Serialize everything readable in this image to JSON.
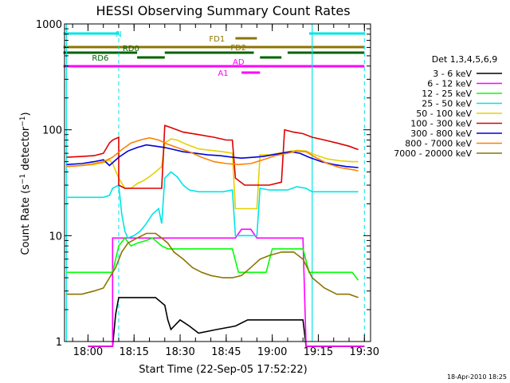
{
  "chart_data": {
    "type": "line",
    "title": "HESSI Observing Summary Count Rates",
    "xlabel": "Start Time (22-Sep-05 17:52:22)",
    "ylabel": "Count Rate (s⁻¹ detector⁻¹)",
    "ylabel_parts": {
      "main": "Count Rate (s",
      "sup1": "−1",
      "mid": " detector",
      "sup2": "−1",
      "end": ")"
    },
    "y_scale": "log",
    "ylim": [
      1,
      1000
    ],
    "yticks": [
      {
        "value": 1,
        "label": "1"
      },
      {
        "value": 10,
        "label": "10"
      },
      {
        "value": 100,
        "label": "100"
      },
      {
        "value": 1000,
        "label": "1000"
      }
    ],
    "xlim": [
      "17:52:22",
      "19:32:00"
    ],
    "xticks": [
      "18:00",
      "18:15",
      "18:30",
      "18:45",
      "19:00",
      "19:15",
      "19:30"
    ],
    "grid": false,
    "legend_title": "Det 1,3,4,5,6,9",
    "legend_position": "right",
    "timestamp": "18-Apr-2010 18:25",
    "flags": [
      {
        "name": "N",
        "color": "#00e5e5",
        "segments": [
          [
            "17:52",
            "18:10"
          ],
          [
            "19:12",
            "19:30"
          ]
        ]
      },
      {
        "name": "FD1",
        "color": "#8b7500",
        "segments": [
          [
            "18:48",
            "18:55"
          ]
        ]
      },
      {
        "name": "FD2",
        "color": "#8b7500",
        "segments": [
          [
            "17:52",
            "19:30"
          ]
        ]
      },
      {
        "name": "RD0",
        "color": "#006400",
        "segments": [
          [
            "17:52",
            "18:16"
          ],
          [
            "18:25",
            "18:54"
          ],
          [
            "19:05",
            "19:30"
          ]
        ]
      },
      {
        "name": "RD6",
        "color": "#006400",
        "segments": [
          [
            "18:16",
            "18:25"
          ],
          [
            "18:56",
            "19:03"
          ]
        ]
      },
      {
        "name": "AD",
        "color": "#ff00ff",
        "segments": [
          [
            "17:52",
            "19:30"
          ]
        ]
      },
      {
        "name": "A1",
        "color": "#ff00ff",
        "segments": [
          [
            "18:50",
            "18:56"
          ]
        ]
      }
    ],
    "saa_markers": [
      "17:53",
      "19:13"
    ],
    "night_markers": [
      "18:10",
      "19:30"
    ],
    "series": [
      {
        "name": "3 - 6 keV",
        "color": "#000000",
        "points": [
          [
            "18:00",
            0.9
          ],
          [
            "18:08",
            0.9
          ],
          [
            "18:09",
            1.8
          ],
          [
            "18:10",
            2.6
          ],
          [
            "18:12",
            2.6
          ],
          [
            "18:14",
            2.6
          ],
          [
            "18:16",
            2.6
          ],
          [
            "18:18",
            2.6
          ],
          [
            "18:20",
            2.6
          ],
          [
            "18:22",
            2.6
          ],
          [
            "18:25",
            2.2
          ],
          [
            "18:26",
            1.6
          ],
          [
            "18:27",
            1.3
          ],
          [
            "18:30",
            1.6
          ],
          [
            "18:33",
            1.4
          ],
          [
            "18:36",
            1.2
          ],
          [
            "18:42",
            1.3
          ],
          [
            "18:48",
            1.4
          ],
          [
            "18:52",
            1.6
          ],
          [
            "18:56",
            1.6
          ],
          [
            "19:00",
            1.6
          ],
          [
            "19:05",
            1.6
          ],
          [
            "19:10",
            1.6
          ],
          [
            "19:11",
            0.9
          ],
          [
            "19:30",
            0.9
          ]
        ]
      },
      {
        "name": "6 - 12 keV",
        "color": "#ff00ff",
        "points": [
          [
            "18:00",
            0.9
          ],
          [
            "18:08",
            0.9
          ],
          [
            "18:08",
            9.5
          ],
          [
            "18:12",
            9.5
          ],
          [
            "18:18",
            9.5
          ],
          [
            "18:24",
            9.5
          ],
          [
            "18:30",
            9.5
          ],
          [
            "18:40",
            9.5
          ],
          [
            "18:48",
            9.5
          ],
          [
            "18:50",
            11.5
          ],
          [
            "18:53",
            11.5
          ],
          [
            "18:55",
            9.5
          ],
          [
            "19:00",
            9.5
          ],
          [
            "19:05",
            9.5
          ],
          [
            "19:10",
            9.5
          ],
          [
            "19:11",
            0.9
          ],
          [
            "19:30",
            0.9
          ]
        ]
      },
      {
        "name": "12 - 25 keV",
        "color": "#00ff00",
        "points": [
          [
            "17:53",
            4.5
          ],
          [
            "17:58",
            4.5
          ],
          [
            "18:02",
            4.5
          ],
          [
            "18:05",
            4.5
          ],
          [
            "18:08",
            4.5
          ],
          [
            "18:10",
            8.0
          ],
          [
            "18:12",
            9.5
          ],
          [
            "18:14",
            8.0
          ],
          [
            "18:16",
            8.5
          ],
          [
            "18:19",
            9.0
          ],
          [
            "18:21",
            9.5
          ],
          [
            "18:24",
            8.0
          ],
          [
            "18:26",
            7.5
          ],
          [
            "18:28",
            7.5
          ],
          [
            "18:33",
            7.5
          ],
          [
            "18:38",
            7.5
          ],
          [
            "18:43",
            7.5
          ],
          [
            "18:47",
            7.5
          ],
          [
            "18:49",
            4.5
          ],
          [
            "18:52",
            4.5
          ],
          [
            "18:55",
            4.5
          ],
          [
            "18:58",
            4.5
          ],
          [
            "19:00",
            7.5
          ],
          [
            "19:05",
            7.5
          ],
          [
            "19:10",
            7.5
          ],
          [
            "19:12",
            4.5
          ],
          [
            "19:16",
            4.5
          ],
          [
            "19:22",
            4.5
          ],
          [
            "19:26",
            4.5
          ],
          [
            "19:28",
            3.8
          ]
        ]
      },
      {
        "name": "25 - 50 keV",
        "color": "#00e5e5",
        "points": [
          [
            "17:53",
            23
          ],
          [
            "17:58",
            23
          ],
          [
            "18:02",
            23
          ],
          [
            "18:05",
            23
          ],
          [
            "18:07",
            24
          ],
          [
            "18:08",
            28
          ],
          [
            "18:10",
            30
          ],
          [
            "18:11",
            16
          ],
          [
            "18:12",
            11
          ],
          [
            "18:13",
            9.5
          ],
          [
            "18:15",
            10
          ],
          [
            "18:17",
            11
          ],
          [
            "18:19",
            13
          ],
          [
            "18:21",
            16
          ],
          [
            "18:23",
            18
          ],
          [
            "18:24",
            13
          ],
          [
            "18:25",
            35
          ],
          [
            "18:27",
            40
          ],
          [
            "18:29",
            36
          ],
          [
            "18:31",
            30
          ],
          [
            "18:33",
            27
          ],
          [
            "18:36",
            26
          ],
          [
            "18:40",
            26
          ],
          [
            "18:44",
            26
          ],
          [
            "18:47",
            27
          ],
          [
            "18:48",
            10
          ],
          [
            "18:52",
            10
          ],
          [
            "18:55",
            10
          ],
          [
            "18:56",
            28
          ],
          [
            "18:59",
            27
          ],
          [
            "19:02",
            27
          ],
          [
            "19:05",
            27
          ],
          [
            "19:08",
            29
          ],
          [
            "19:11",
            28
          ],
          [
            "19:13",
            26
          ],
          [
            "19:17",
            26
          ],
          [
            "19:21",
            26
          ],
          [
            "19:25",
            26
          ],
          [
            "19:28",
            26
          ]
        ]
      },
      {
        "name": "50 - 100 keV",
        "color": "#e5d000",
        "points": [
          [
            "17:53",
            45
          ],
          [
            "17:58",
            46
          ],
          [
            "18:02",
            47
          ],
          [
            "18:05",
            49
          ],
          [
            "18:07",
            52
          ],
          [
            "18:08",
            48
          ],
          [
            "18:10",
            35
          ],
          [
            "18:12",
            28
          ],
          [
            "18:14",
            28
          ],
          [
            "18:16",
            31
          ],
          [
            "18:18",
            33
          ],
          [
            "18:20",
            36
          ],
          [
            "18:22",
            40
          ],
          [
            "18:24",
            45
          ],
          [
            "18:25",
            75
          ],
          [
            "18:27",
            82
          ],
          [
            "18:29",
            80
          ],
          [
            "18:32",
            73
          ],
          [
            "18:36",
            66
          ],
          [
            "18:40",
            64
          ],
          [
            "18:44",
            62
          ],
          [
            "18:47",
            60
          ],
          [
            "18:48",
            18
          ],
          [
            "18:52",
            18
          ],
          [
            "18:55",
            18
          ],
          [
            "18:56",
            58
          ],
          [
            "18:59",
            58
          ],
          [
            "19:02",
            60
          ],
          [
            "19:05",
            62
          ],
          [
            "19:08",
            64
          ],
          [
            "19:11",
            63
          ],
          [
            "19:14",
            58
          ],
          [
            "19:18",
            53
          ],
          [
            "19:22",
            51
          ],
          [
            "19:26",
            50
          ],
          [
            "19:28",
            50
          ]
        ]
      },
      {
        "name": "100 - 300 keV",
        "color": "#dd0000",
        "points": [
          [
            "17:53",
            55
          ],
          [
            "17:58",
            56
          ],
          [
            "18:02",
            57
          ],
          [
            "18:05",
            60
          ],
          [
            "18:07",
            75
          ],
          [
            "18:08",
            80
          ],
          [
            "18:10",
            85
          ],
          [
            "18:10",
            30
          ],
          [
            "18:12",
            28
          ],
          [
            "18:16",
            28
          ],
          [
            "18:20",
            28
          ],
          [
            "18:24",
            28
          ],
          [
            "18:25",
            110
          ],
          [
            "18:27",
            105
          ],
          [
            "18:31",
            95
          ],
          [
            "18:36",
            90
          ],
          [
            "18:41",
            85
          ],
          [
            "18:45",
            80
          ],
          [
            "18:47",
            80
          ],
          [
            "18:48",
            35
          ],
          [
            "18:51",
            30
          ],
          [
            "18:55",
            30
          ],
          [
            "18:59",
            30
          ],
          [
            "19:03",
            32
          ],
          [
            "19:04",
            100
          ],
          [
            "19:07",
            95
          ],
          [
            "19:10",
            92
          ],
          [
            "19:13",
            85
          ],
          [
            "19:17",
            80
          ],
          [
            "19:21",
            75
          ],
          [
            "19:25",
            70
          ],
          [
            "19:28",
            65
          ]
        ]
      },
      {
        "name": "300 - 800 keV",
        "color": "#0000dd",
        "points": [
          [
            "17:53",
            47
          ],
          [
            "17:58",
            48
          ],
          [
            "18:02",
            50
          ],
          [
            "18:05",
            52
          ],
          [
            "18:07",
            46
          ],
          [
            "18:10",
            55
          ],
          [
            "18:13",
            63
          ],
          [
            "18:16",
            68
          ],
          [
            "18:19",
            72
          ],
          [
            "18:22",
            70
          ],
          [
            "18:25",
            68
          ],
          [
            "18:28",
            65
          ],
          [
            "18:31",
            62
          ],
          [
            "18:35",
            60
          ],
          [
            "18:39",
            58
          ],
          [
            "18:43",
            57
          ],
          [
            "18:47",
            55
          ],
          [
            "18:50",
            54
          ],
          [
            "18:54",
            55
          ],
          [
            "18:57",
            56
          ],
          [
            "19:00",
            58
          ],
          [
            "19:03",
            60
          ],
          [
            "19:06",
            62
          ],
          [
            "19:09",
            60
          ],
          [
            "19:12",
            55
          ],
          [
            "19:16",
            50
          ],
          [
            "19:20",
            47
          ],
          [
            "19:24",
            45
          ],
          [
            "19:28",
            44
          ]
        ]
      },
      {
        "name": "800 - 7000 keV",
        "color": "#ff8000",
        "points": [
          [
            "17:53",
            45
          ],
          [
            "17:58",
            46
          ],
          [
            "18:02",
            48
          ],
          [
            "18:05",
            50
          ],
          [
            "18:08",
            55
          ],
          [
            "18:11",
            65
          ],
          [
            "18:14",
            75
          ],
          [
            "18:17",
            80
          ],
          [
            "18:20",
            84
          ],
          [
            "18:23",
            80
          ],
          [
            "18:26",
            73
          ],
          [
            "18:29",
            68
          ],
          [
            "18:33",
            62
          ],
          [
            "18:37",
            55
          ],
          [
            "18:41",
            50
          ],
          [
            "18:45",
            48
          ],
          [
            "18:49",
            47
          ],
          [
            "18:53",
            48
          ],
          [
            "18:57",
            52
          ],
          [
            "19:01",
            57
          ],
          [
            "19:05",
            60
          ],
          [
            "19:08",
            63
          ],
          [
            "19:11",
            62
          ],
          [
            "19:14",
            55
          ],
          [
            "19:18",
            48
          ],
          [
            "19:22",
            44
          ],
          [
            "19:26",
            42
          ],
          [
            "19:28",
            41
          ]
        ]
      },
      {
        "name": "7000 - 20000 keV",
        "color": "#8b7500",
        "points": [
          [
            "17:53",
            2.8
          ],
          [
            "17:58",
            2.8
          ],
          [
            "18:02",
            3.0
          ],
          [
            "18:05",
            3.2
          ],
          [
            "18:07",
            4.0
          ],
          [
            "18:09",
            5.0
          ],
          [
            "18:11",
            7.0
          ],
          [
            "18:13",
            8.5
          ],
          [
            "18:16",
            9.5
          ],
          [
            "18:19",
            10.5
          ],
          [
            "18:22",
            10.5
          ],
          [
            "18:24",
            9.5
          ],
          [
            "18:26",
            8.5
          ],
          [
            "18:28",
            7.0
          ],
          [
            "18:31",
            6.0
          ],
          [
            "18:34",
            5.0
          ],
          [
            "18:37",
            4.5
          ],
          [
            "18:40",
            4.2
          ],
          [
            "18:44",
            4.0
          ],
          [
            "18:47",
            4.0
          ],
          [
            "18:50",
            4.2
          ],
          [
            "18:53",
            5.0
          ],
          [
            "18:56",
            6.0
          ],
          [
            "18:59",
            6.5
          ],
          [
            "19:03",
            7.0
          ],
          [
            "19:07",
            7.0
          ],
          [
            "19:10",
            6.0
          ],
          [
            "19:13",
            4.0
          ],
          [
            "19:17",
            3.2
          ],
          [
            "19:21",
            2.8
          ],
          [
            "19:25",
            2.8
          ],
          [
            "19:28",
            2.6
          ]
        ]
      }
    ]
  }
}
